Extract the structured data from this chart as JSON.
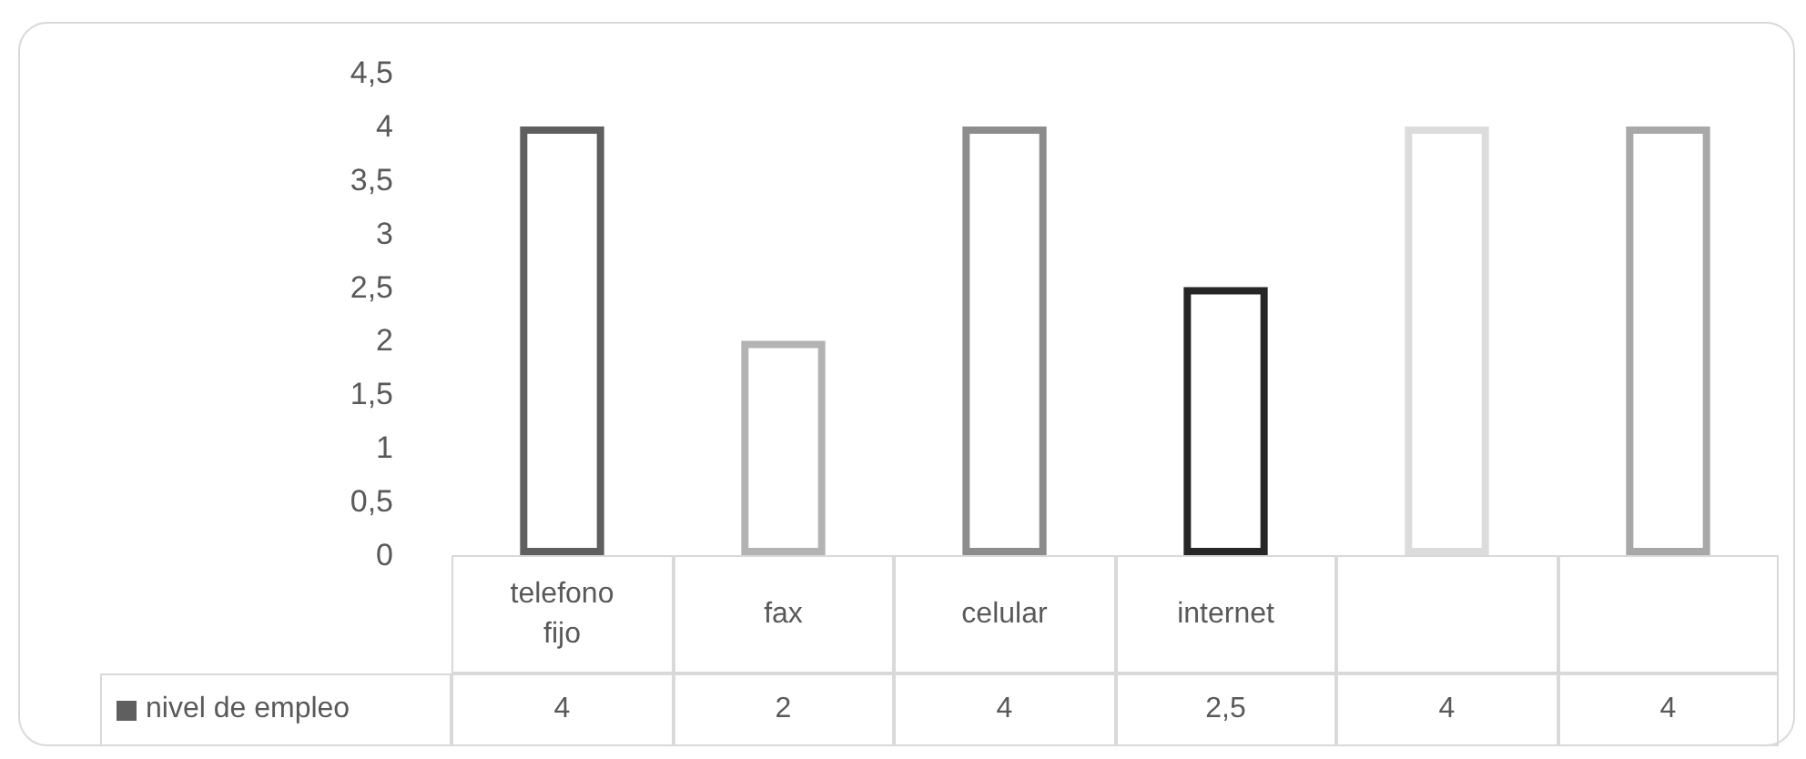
{
  "chart_data": {
    "type": "bar",
    "categories": [
      "telefono fijo",
      "fax",
      "celular",
      "internet",
      null,
      null
    ],
    "series": [
      {
        "name": "nivel de empleo",
        "color": "#5f5f5f",
        "colors": [
          "#5f5f5f",
          "#b3b3b3",
          "#8c8c8c",
          "#262626",
          "#dcdcdc",
          "#a8a8a8"
        ],
        "values": [
          4,
          2,
          4,
          2.5,
          4,
          4
        ],
        "value_labels": [
          "4",
          "2",
          "4",
          "2,5",
          "4",
          "4"
        ]
      }
    ],
    "ylim": [
      0,
      4.5
    ],
    "yticks": [
      0,
      {
        "value": 0.5,
        "label": "0,5"
      },
      1,
      {
        "value": 1.5,
        "label": "1,5"
      },
      2,
      {
        "value": 2.5,
        "label": "2,5"
      },
      3,
      {
        "value": 3.5,
        "label": "3,5"
      },
      4,
      {
        "value": 4.5,
        "label": "4,5"
      }
    ],
    "grid": false,
    "legend": "bottom"
  }
}
